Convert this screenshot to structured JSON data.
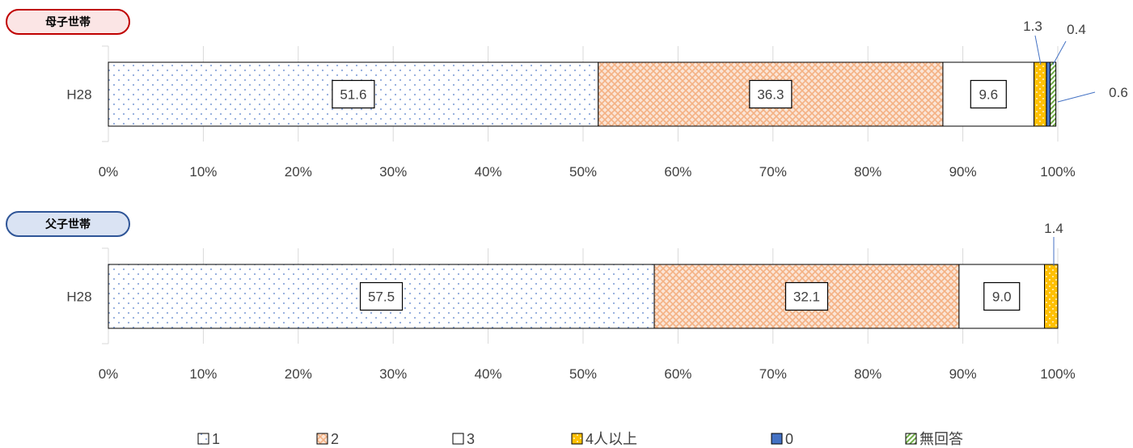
{
  "chart_data": {
    "type": "bar",
    "orientation": "horizontal",
    "stacked": "percent",
    "xlim": [
      0,
      100
    ],
    "x_ticks": [
      "0%",
      "10%",
      "20%",
      "30%",
      "40%",
      "50%",
      "60%",
      "70%",
      "80%",
      "90%",
      "100%"
    ],
    "legend_position": "bottom",
    "legend": [
      {
        "label": "1",
        "color": "#ffffff",
        "pattern": "dots-blue"
      },
      {
        "label": "2",
        "color": "#f4b183",
        "pattern": "crosshatch-orange"
      },
      {
        "label": "3",
        "color": "#ffffff",
        "pattern": "none"
      },
      {
        "label": "4人以上",
        "color": "#ffc000",
        "pattern": "dots-white"
      },
      {
        "label": "0",
        "color": "#4472c4",
        "pattern": "none"
      },
      {
        "label": "無回答",
        "color": "#a9d18e",
        "pattern": "diagonal-green"
      }
    ],
    "panels": [
      {
        "badge": "母子世帯",
        "badge_color": "#c00000",
        "category": "H28",
        "values": [
          51.6,
          36.3,
          9.6,
          1.3,
          0.4,
          0.6
        ],
        "labels": [
          "51.6",
          "36.3",
          "9.6",
          "1.3",
          "0.4",
          "0.6"
        ]
      },
      {
        "badge": "父子世帯",
        "badge_color": "#2f5597",
        "category": "H28",
        "values": [
          57.5,
          32.1,
          9.0,
          1.4
        ],
        "labels": [
          "57.5",
          "32.1",
          "9.0",
          "1.4"
        ]
      }
    ]
  }
}
